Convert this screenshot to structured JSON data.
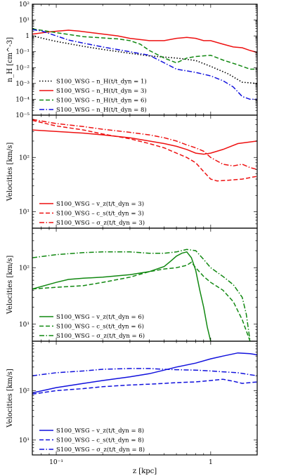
{
  "chart_data": [
    {
      "type": "line",
      "ylabel": "n_H [cm^-3]",
      "xscale": "log",
      "yscale": "log",
      "xlim": [
        0.07,
        2.0
      ],
      "ylim": [
        1e-05,
        100
      ],
      "yticks": [
        {
          "v": 100,
          "t": "10²"
        },
        {
          "v": 10,
          "t": "10¹"
        },
        {
          "v": 1,
          "t": "1"
        },
        {
          "v": 0.1,
          "t": "10⁻¹"
        },
        {
          "v": 0.01,
          "t": "10⁻²"
        },
        {
          "v": 0.001,
          "t": "10⁻³"
        },
        {
          "v": 0.0001,
          "t": "10⁻⁴"
        },
        {
          "v": 1e-05,
          "t": "10⁻⁵"
        }
      ],
      "legend_placement": "lower-left",
      "series": [
        {
          "name": "S100_WSG – n_H(t/t_dyn = 1)",
          "color": "#000000",
          "dash": "dot",
          "x": [
            0.07,
            0.1,
            0.15,
            0.2,
            0.3,
            0.4,
            0.6,
            0.8,
            1.0,
            1.3,
            1.6,
            2.0
          ],
          "y": [
            1.0,
            0.45,
            0.22,
            0.14,
            0.08,
            0.055,
            0.04,
            0.028,
            0.012,
            0.004,
            0.0012,
            0.001
          ]
        },
        {
          "name": "S100_WSG – n_H(t/t_dyn = 3)",
          "color": "#ee1111",
          "dash": "solid",
          "x": [
            0.07,
            0.09,
            0.12,
            0.14,
            0.18,
            0.25,
            0.3,
            0.4,
            0.5,
            0.6,
            0.7,
            0.8,
            0.9,
            1.0,
            1.2,
            1.4,
            1.6,
            1.8,
            2.0
          ],
          "y": [
            1.3,
            1.8,
            2.3,
            2.0,
            1.5,
            1.0,
            0.7,
            0.5,
            0.5,
            0.7,
            0.8,
            0.7,
            0.5,
            0.5,
            0.3,
            0.2,
            0.18,
            0.12,
            0.09
          ]
        },
        {
          "name": "S100_WSG – n_H(t/t_dyn = 6)",
          "color": "#118811",
          "dash": "dash",
          "x": [
            0.07,
            0.1,
            0.15,
            0.2,
            0.25,
            0.3,
            0.35,
            0.4,
            0.5,
            0.6,
            0.7,
            0.8,
            1.0,
            1.2,
            1.5,
            1.8,
            2.0
          ],
          "y": [
            2.8,
            1.6,
            0.9,
            0.75,
            0.65,
            0.5,
            0.3,
            0.12,
            0.04,
            0.02,
            0.04,
            0.05,
            0.06,
            0.03,
            0.015,
            0.008,
            0.008
          ]
        },
        {
          "name": "S100_WSG – n_H(t/t_dyn = 8)",
          "color": "#1111dd",
          "dash": "dashdot",
          "x": [
            0.07,
            0.08,
            0.1,
            0.12,
            0.15,
            0.2,
            0.3,
            0.4,
            0.5,
            0.6,
            0.8,
            1.0,
            1.2,
            1.4,
            1.6,
            1.8,
            2.0
          ],
          "y": [
            2.5,
            2.1,
            1.0,
            0.55,
            0.35,
            0.2,
            0.1,
            0.06,
            0.02,
            0.008,
            0.005,
            0.003,
            0.0015,
            0.0006,
            0.00015,
            0.0001,
            0.0001
          ]
        }
      ]
    },
    {
      "type": "line",
      "ylabel": "Velocities [km/s]",
      "xscale": "log",
      "yscale": "log",
      "xlim": [
        0.07,
        2.0
      ],
      "ylim": [
        5,
        600
      ],
      "yticks": [
        {
          "v": 100,
          "t": "10²"
        },
        {
          "v": 10,
          "t": "10¹"
        }
      ],
      "legend_placement": "lower-left",
      "series": [
        {
          "name": "S100_WSG – v_z(t/t_dyn = 3)",
          "color": "#ee1111",
          "dash": "solid",
          "x": [
            0.07,
            0.1,
            0.15,
            0.2,
            0.3,
            0.4,
            0.5,
            0.6,
            0.7,
            0.8,
            0.9,
            1.0,
            1.2,
            1.5,
            2.0
          ],
          "y": [
            320,
            300,
            280,
            260,
            230,
            200,
            180,
            160,
            140,
            120,
            115,
            120,
            140,
            180,
            200
          ]
        },
        {
          "name": "S100_WSG – c_s(t/t_dyn = 3)",
          "color": "#ee1111",
          "dash": "dash",
          "x": [
            0.07,
            0.1,
            0.15,
            0.2,
            0.3,
            0.4,
            0.5,
            0.6,
            0.7,
            0.8,
            0.9,
            1.0,
            1.1,
            1.3,
            1.6,
            2.0
          ],
          "y": [
            480,
            380,
            320,
            270,
            220,
            180,
            150,
            120,
            100,
            80,
            55,
            40,
            37,
            38,
            40,
            45
          ]
        },
        {
          "name": "S100_WSG – σ_z(t/t_dyn = 3)",
          "color": "#ee1111",
          "dash": "dashdot",
          "x": [
            0.07,
            0.1,
            0.15,
            0.2,
            0.3,
            0.4,
            0.5,
            0.6,
            0.7,
            0.8,
            0.9,
            1.0,
            1.2,
            1.4,
            1.6,
            1.8,
            2.0
          ],
          "y": [
            500,
            420,
            370,
            330,
            290,
            260,
            230,
            200,
            170,
            150,
            130,
            100,
            75,
            70,
            75,
            65,
            60
          ]
        }
      ]
    },
    {
      "type": "line",
      "ylabel": "Velocities [km/s]",
      "xscale": "log",
      "yscale": "log",
      "xlim": [
        0.07,
        2.0
      ],
      "ylim": [
        5,
        500
      ],
      "yticks": [
        {
          "v": 100,
          "t": "10²"
        },
        {
          "v": 10,
          "t": "10¹"
        }
      ],
      "legend_placement": "lower-left",
      "series": [
        {
          "name": "S100_WSG – v_z(t/t_dyn = 6)",
          "color": "#118811",
          "dash": "solid",
          "x": [
            0.07,
            0.1,
            0.12,
            0.15,
            0.2,
            0.3,
            0.4,
            0.5,
            0.55,
            0.6,
            0.65,
            0.7,
            0.75,
            0.8,
            0.85,
            0.9,
            0.95,
            1.0
          ],
          "y": [
            42,
            55,
            62,
            65,
            68,
            75,
            85,
            105,
            130,
            160,
            180,
            190,
            150,
            90,
            40,
            20,
            9,
            5
          ]
        },
        {
          "name": "S100_WSG – c_s(t/t_dyn = 6)",
          "color": "#118811",
          "dash": "dash",
          "x": [
            0.07,
            0.1,
            0.15,
            0.2,
            0.3,
            0.4,
            0.5,
            0.6,
            0.7,
            0.75,
            0.8,
            0.9,
            1.0,
            1.2,
            1.4,
            1.6,
            1.8
          ],
          "y": [
            42,
            45,
            48,
            55,
            68,
            85,
            95,
            100,
            110,
            125,
            100,
            70,
            55,
            40,
            25,
            12,
            5
          ]
        },
        {
          "name": "S100_WSG – σ_z(t/t_dyn = 6)",
          "color": "#118811",
          "dash": "dashdot",
          "x": [
            0.07,
            0.1,
            0.15,
            0.2,
            0.3,
            0.4,
            0.5,
            0.6,
            0.7,
            0.8,
            0.9,
            1.0,
            1.2,
            1.4,
            1.6,
            1.7,
            1.8
          ],
          "y": [
            150,
            170,
            185,
            190,
            190,
            180,
            180,
            190,
            210,
            200,
            140,
            100,
            70,
            50,
            30,
            15,
            5
          ]
        }
      ]
    },
    {
      "type": "line",
      "ylabel": "Velocities [km/s]",
      "xlabel": "z [kpc]",
      "xscale": "log",
      "yscale": "log",
      "xlim": [
        0.07,
        2.0
      ],
      "ylim": [
        5,
        1000
      ],
      "xticks": [
        {
          "v": 0.1,
          "t": "10⁻¹"
        },
        {
          "v": 1,
          "t": "1"
        }
      ],
      "yticks": [
        {
          "v": 100,
          "t": "10²"
        },
        {
          "v": 10,
          "t": "10¹"
        }
      ],
      "legend_placement": "lower-left",
      "series": [
        {
          "name": "S100_WSG – v_z(t/t_dyn = 8)",
          "color": "#1111dd",
          "dash": "solid",
          "x": [
            0.07,
            0.1,
            0.15,
            0.2,
            0.3,
            0.4,
            0.5,
            0.6,
            0.8,
            1.0,
            1.2,
            1.5,
            1.8,
            2.0
          ],
          "y": [
            90,
            115,
            140,
            160,
            190,
            220,
            260,
            300,
            360,
            440,
            500,
            580,
            560,
            530
          ]
        },
        {
          "name": "S100_WSG – c_s(t/t_dyn = 8)",
          "color": "#1111dd",
          "dash": "dash",
          "x": [
            0.07,
            0.1,
            0.15,
            0.2,
            0.3,
            0.4,
            0.5,
            0.6,
            0.8,
            1.0,
            1.2,
            1.4,
            1.6,
            1.8,
            2.0
          ],
          "y": [
            85,
            100,
            110,
            120,
            130,
            135,
            140,
            145,
            150,
            160,
            170,
            155,
            140,
            145,
            150
          ]
        },
        {
          "name": "S100_WSG – σ_z(t/t_dyn = 8)",
          "color": "#1111dd",
          "dash": "dashdot",
          "x": [
            0.07,
            0.1,
            0.15,
            0.2,
            0.3,
            0.4,
            0.5,
            0.6,
            0.8,
            1.0,
            1.2,
            1.5,
            1.8,
            2.0
          ],
          "y": [
            200,
            230,
            250,
            270,
            280,
            280,
            270,
            265,
            260,
            250,
            240,
            230,
            210,
            200
          ]
        }
      ]
    }
  ]
}
